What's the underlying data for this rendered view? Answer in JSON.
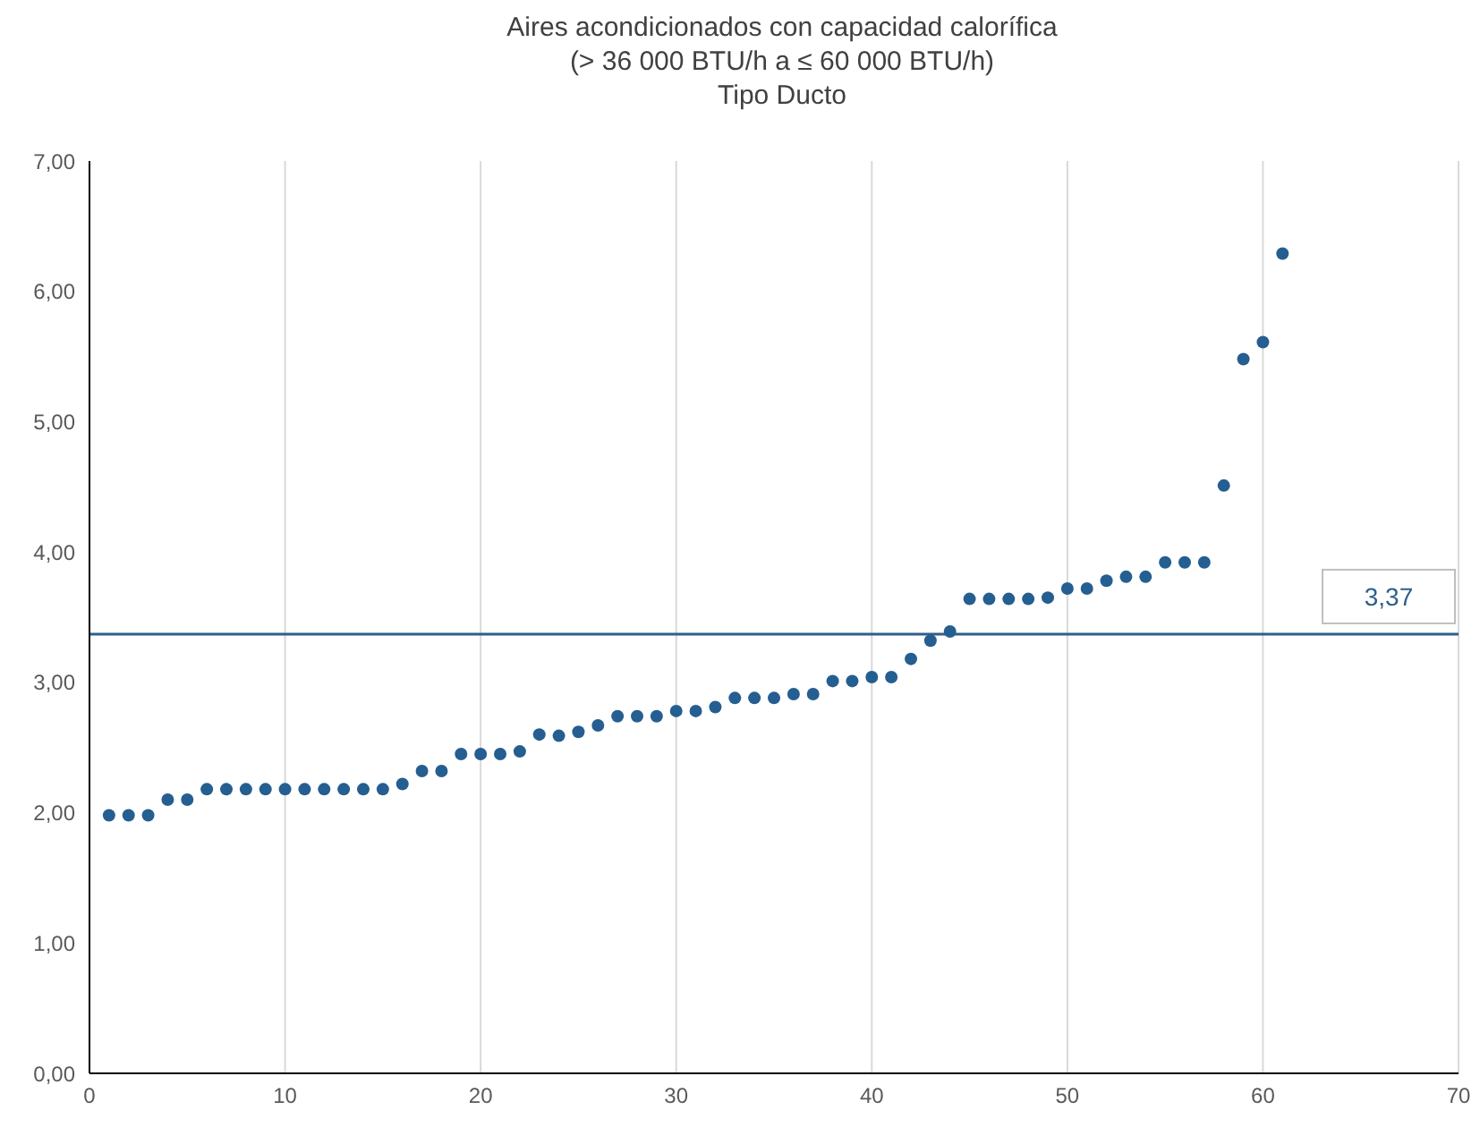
{
  "chart_data": {
    "type": "scatter",
    "title": "Aires acondicionados con capacidad calorífica\n(> 36 000 BTU/h a ≤ 60 000 BTU/h)\nTipo Ducto",
    "x": [
      1,
      2,
      3,
      4,
      5,
      6,
      7,
      8,
      9,
      10,
      11,
      12,
      13,
      14,
      15,
      16,
      17,
      18,
      19,
      20,
      21,
      22,
      23,
      24,
      25,
      26,
      27,
      28,
      29,
      30,
      31,
      32,
      33,
      34,
      35,
      36,
      37,
      38,
      39,
      40,
      41,
      42,
      43,
      44,
      45,
      46,
      47,
      48,
      49,
      50,
      51,
      52,
      53,
      54,
      55,
      56,
      57,
      58,
      59,
      60,
      61
    ],
    "series": [
      {
        "color": "#255e91",
        "values": [
          1.98,
          1.98,
          1.98,
          2.1,
          2.1,
          2.18,
          2.18,
          2.18,
          2.18,
          2.18,
          2.18,
          2.18,
          2.18,
          2.18,
          2.18,
          2.22,
          2.32,
          2.32,
          2.45,
          2.45,
          2.45,
          2.47,
          2.6,
          2.59,
          2.62,
          2.67,
          2.74,
          2.74,
          2.74,
          2.78,
          2.78,
          2.81,
          2.88,
          2.88,
          2.88,
          2.91,
          2.91,
          3.01,
          3.01,
          3.04,
          3.04,
          3.18,
          3.32,
          3.39,
          3.64,
          3.64,
          3.64,
          3.64,
          3.65,
          3.72,
          3.72,
          3.78,
          3.81,
          3.81,
          3.92,
          3.92,
          3.92,
          4.51,
          5.48,
          5.61,
          6.29
        ]
      }
    ],
    "xlim": [
      0,
      70
    ],
    "xticks": [
      0,
      10,
      20,
      30,
      40,
      50,
      60,
      70
    ],
    "ylim": [
      0,
      7
    ],
    "yticks": [
      {
        "value": 0,
        "label": "0,00"
      },
      {
        "value": 1,
        "label": "1,00"
      },
      {
        "value": 2,
        "label": "2,00"
      },
      {
        "value": 3,
        "label": "3,00"
      },
      {
        "value": 4,
        "label": "4,00"
      },
      {
        "value": 5,
        "label": "5,00"
      },
      {
        "value": 6,
        "label": "6,00"
      },
      {
        "value": 7,
        "label": "7,00"
      }
    ],
    "ref_lines": [
      {
        "axis": "y",
        "value": 3.37,
        "label": "3,37",
        "color": "#2e5f8a"
      }
    ],
    "grid": "x",
    "marker": "circle",
    "legend": false
  }
}
